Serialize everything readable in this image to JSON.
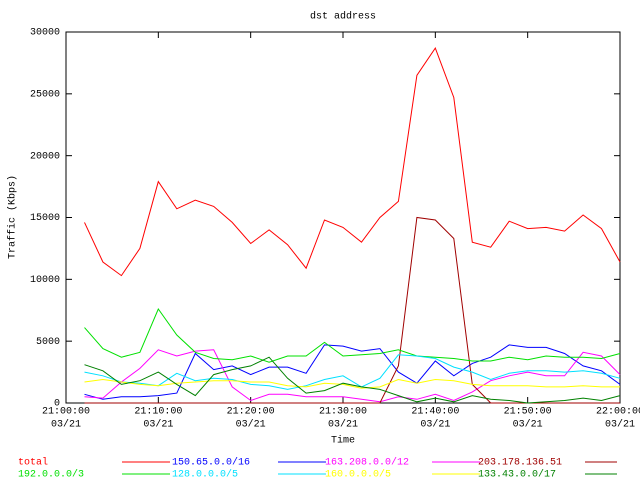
{
  "chart_data": {
    "type": "line",
    "title": "dst address",
    "x_label": "Time",
    "y_label": "Traffic (Kbps)",
    "x": [
      "21:02:00",
      "21:04:00",
      "21:06:00",
      "21:08:00",
      "21:10:00",
      "21:12:00",
      "21:14:00",
      "21:16:00",
      "21:18:00",
      "21:20:00",
      "21:22:00",
      "21:24:00",
      "21:26:00",
      "21:28:00",
      "21:30:00",
      "21:32:00",
      "21:34:00",
      "21:36:00",
      "21:38:00",
      "21:40:00",
      "21:42:00",
      "21:44:00",
      "21:46:00",
      "21:48:00",
      "21:50:00",
      "21:52:00",
      "21:54:00",
      "21:56:00",
      "21:58:00",
      "22:00:00"
    ],
    "xlim": [
      "21:00:00",
      "22:00:00"
    ],
    "xticks": [
      {
        "value": "21:00:00",
        "label": "21:00:00",
        "date": "03/21"
      },
      {
        "value": "21:10:00",
        "label": "21:10:00",
        "date": "03/21"
      },
      {
        "value": "21:20:00",
        "label": "21:20:00",
        "date": "03/21"
      },
      {
        "value": "21:30:00",
        "label": "21:30:00",
        "date": "03/21"
      },
      {
        "value": "21:40:00",
        "label": "21:40:00",
        "date": "03/21"
      },
      {
        "value": "21:50:00",
        "label": "21:50:00",
        "date": "03/21"
      },
      {
        "value": "22:00:00",
        "label": "22:00:00",
        "date": "03/21"
      }
    ],
    "ylim": [
      0,
      30000
    ],
    "yticks": [
      0,
      5000,
      10000,
      15000,
      20000,
      25000,
      30000
    ],
    "grid": false,
    "series": [
      {
        "name": "total",
        "color": "#ff0000",
        "values": [
          14600,
          11400,
          10300,
          12500,
          17900,
          15700,
          16400,
          15900,
          14600,
          12900,
          14000,
          12800,
          10900,
          14800,
          14200,
          13000,
          15000,
          16300,
          26500,
          28700,
          24700,
          13000,
          12600,
          14700,
          14100,
          14200,
          13900,
          15200,
          14100,
          11400
        ]
      },
      {
        "name": "150.65.0.0/16",
        "color": "#0000ff",
        "values": [
          700,
          300,
          500,
          500,
          600,
          800,
          4000,
          2700,
          3000,
          2300,
          2900,
          2900,
          2400,
          4700,
          4600,
          4200,
          4400,
          2500,
          1600,
          3400,
          2200,
          3200,
          3700,
          4700,
          4500,
          4500,
          4000,
          3000,
          2600,
          1500
        ]
      },
      {
        "name": "163.208.0.0/12",
        "color": "#ff00ff",
        "values": [
          500,
          400,
          1700,
          2800,
          4300,
          3800,
          4200,
          4300,
          1300,
          200,
          700,
          700,
          500,
          500,
          500,
          300,
          100,
          500,
          300,
          700,
          200,
          900,
          1800,
          2200,
          2500,
          2200,
          2200,
          4100,
          3800,
          2300
        ]
      },
      {
        "name": "203.178.136.51",
        "color": "#a00000",
        "values": [
          0,
          0,
          0,
          0,
          0,
          0,
          0,
          0,
          0,
          0,
          0,
          0,
          0,
          0,
          0,
          0,
          0,
          3000,
          15000,
          14800,
          13300,
          1500,
          0,
          0,
          0,
          0,
          0,
          0,
          0,
          0
        ]
      },
      {
        "name": "192.0.0.0/3",
        "color": "#00e000",
        "values": [
          6100,
          4400,
          3700,
          4100,
          7600,
          5500,
          4100,
          3600,
          3500,
          3800,
          3300,
          3800,
          3800,
          4900,
          3800,
          3900,
          4000,
          4300,
          3800,
          3700,
          3600,
          3400,
          3400,
          3700,
          3500,
          3800,
          3700,
          3700,
          3600,
          4000
        ]
      },
      {
        "name": "128.0.0.0/5",
        "color": "#00e0ff",
        "values": [
          2500,
          2200,
          1700,
          1600,
          1400,
          2400,
          1800,
          2000,
          1900,
          1500,
          1400,
          1100,
          1400,
          1900,
          2200,
          1300,
          2000,
          3900,
          3800,
          3600,
          2900,
          2500,
          1900,
          2400,
          2600,
          2600,
          2500,
          2600,
          2400,
          2000
        ]
      },
      {
        "name": "160.0.0.0/5",
        "color": "#ffff00",
        "values": [
          1700,
          1900,
          1700,
          1500,
          1400,
          1600,
          1700,
          1800,
          1800,
          1700,
          1700,
          1400,
          1300,
          1600,
          1500,
          1200,
          1300,
          1900,
          1600,
          1900,
          1800,
          1500,
          1400,
          1400,
          1400,
          1300,
          1300,
          1400,
          1300,
          1300
        ]
      },
      {
        "name": "133.43.0.0/17",
        "color": "#008000",
        "values": [
          3100,
          2600,
          1500,
          1800,
          2500,
          1500,
          600,
          2300,
          2700,
          3000,
          3700,
          2000,
          800,
          1000,
          1600,
          1300,
          1100,
          600,
          100,
          400,
          100,
          600,
          300,
          200,
          0,
          100,
          200,
          400,
          200,
          600
        ]
      }
    ]
  }
}
